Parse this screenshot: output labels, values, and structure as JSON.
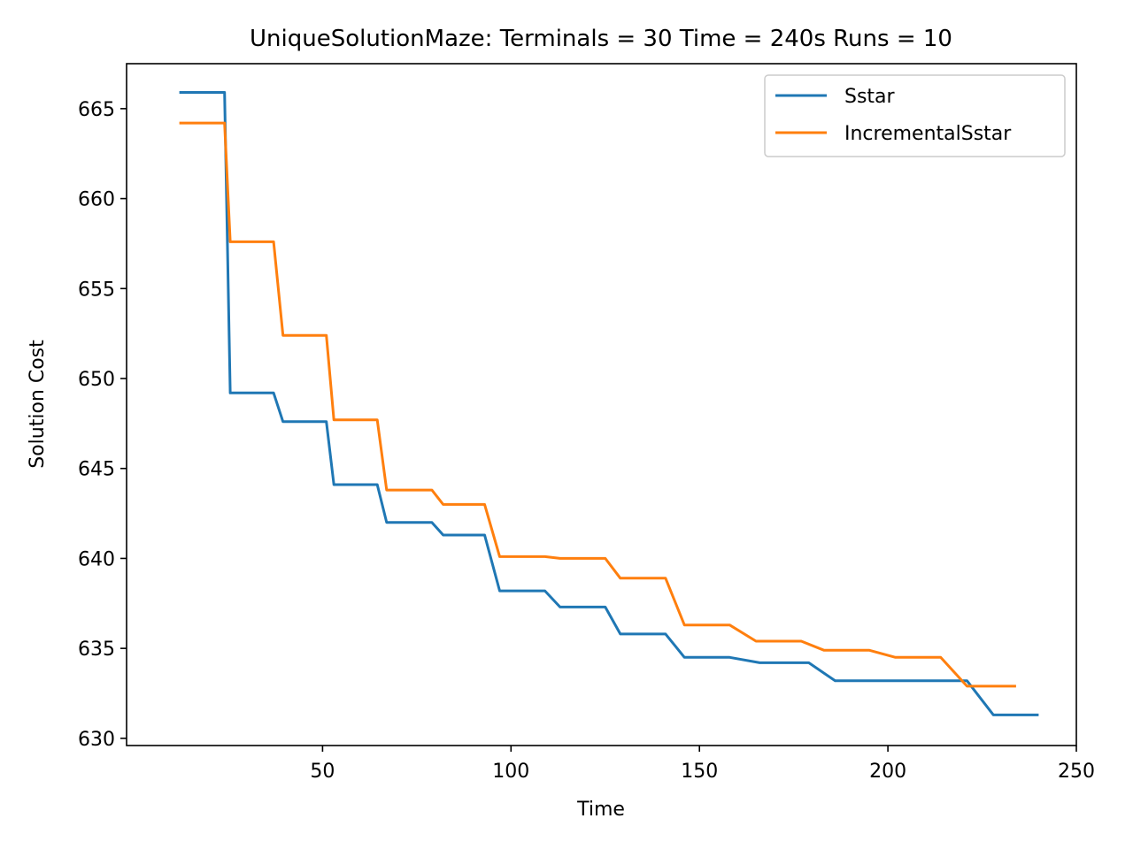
{
  "chart_data": {
    "type": "line",
    "title": "UniqueSolutionMaze:  Terminals = 30  Time = 240s  Runs = 10",
    "xlabel": "Time",
    "ylabel": "Solution Cost",
    "xlim": [
      -2,
      250
    ],
    "ylim": [
      629.6,
      667.5
    ],
    "xticks": [
      50,
      100,
      150,
      200,
      250
    ],
    "yticks": [
      630,
      635,
      640,
      645,
      650,
      655,
      660,
      665
    ],
    "grid": false,
    "legend_position": "top-right",
    "series": [
      {
        "name": "Sstar",
        "color": "#1f77b4",
        "points": [
          [
            12,
            665.9
          ],
          [
            24,
            665.9
          ],
          [
            25.5,
            649.2
          ],
          [
            37,
            649.2
          ],
          [
            39.5,
            647.6
          ],
          [
            51,
            647.6
          ],
          [
            53,
            644.1
          ],
          [
            64.5,
            644.1
          ],
          [
            67,
            642.0
          ],
          [
            79,
            642.0
          ],
          [
            82,
            641.3
          ],
          [
            93,
            641.3
          ],
          [
            97,
            638.2
          ],
          [
            109,
            638.2
          ],
          [
            113,
            637.3
          ],
          [
            125,
            637.3
          ],
          [
            129,
            635.8
          ],
          [
            141,
            635.8
          ],
          [
            146,
            634.5
          ],
          [
            158,
            634.5
          ],
          [
            166,
            634.2
          ],
          [
            179,
            634.2
          ],
          [
            186,
            633.2
          ],
          [
            197,
            633.2
          ],
          [
            209,
            633.2
          ],
          [
            221,
            633.2
          ],
          [
            228,
            631.3
          ],
          [
            240,
            631.3
          ]
        ]
      },
      {
        "name": "IncrementalSstar",
        "color": "#ff7f0e",
        "points": [
          [
            12,
            664.2
          ],
          [
            24,
            664.2
          ],
          [
            25.5,
            657.6
          ],
          [
            37,
            657.6
          ],
          [
            39.5,
            652.4
          ],
          [
            51,
            652.4
          ],
          [
            53,
            647.7
          ],
          [
            64.5,
            647.7
          ],
          [
            67,
            643.8
          ],
          [
            79,
            643.8
          ],
          [
            82,
            643.0
          ],
          [
            93,
            643.0
          ],
          [
            97,
            640.1
          ],
          [
            109,
            640.1
          ],
          [
            113,
            640.0
          ],
          [
            125,
            640.0
          ],
          [
            129,
            638.9
          ],
          [
            141,
            638.9
          ],
          [
            146,
            636.3
          ],
          [
            158,
            636.3
          ],
          [
            165,
            635.4
          ],
          [
            177,
            635.4
          ],
          [
            183,
            634.9
          ],
          [
            195,
            634.9
          ],
          [
            202,
            634.5
          ],
          [
            214,
            634.5
          ],
          [
            221,
            632.9
          ],
          [
            234,
            632.9
          ]
        ]
      }
    ]
  }
}
